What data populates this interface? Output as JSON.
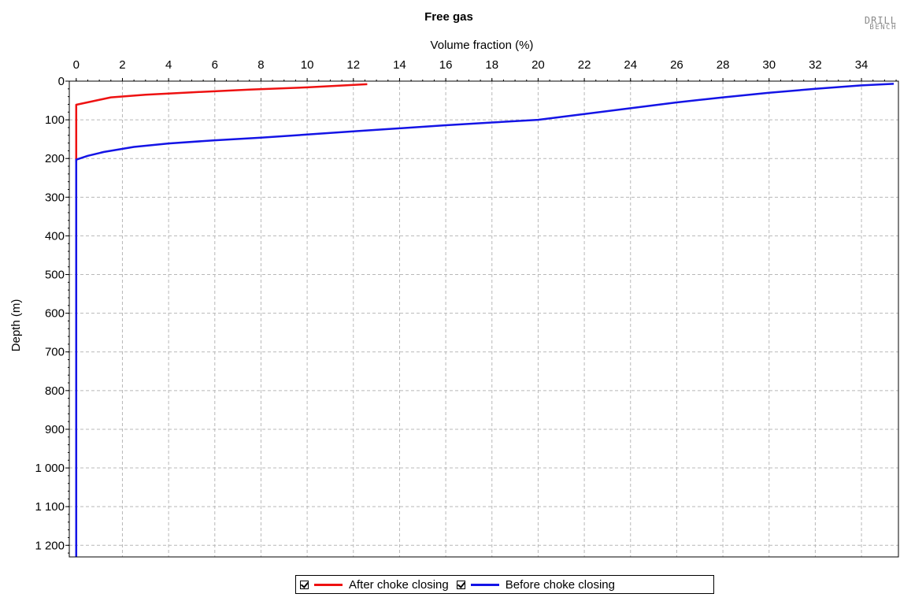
{
  "colors": {
    "after": "#ee1111",
    "before": "#1414e6",
    "grid": "#b8b8b8"
  },
  "logo": {
    "line1": "DRILL",
    "line2": "BENCH"
  },
  "chart_data": {
    "type": "line",
    "title": "Free gas",
    "xlabel": "Volume fraction (%)",
    "ylabel": "Depth (m)",
    "x_axis_position": "top",
    "y_inverted": true,
    "xlim": [
      -0.3,
      35.6
    ],
    "ylim": [
      0,
      1230
    ],
    "xticks": [
      0,
      2,
      4,
      6,
      8,
      10,
      12,
      14,
      16,
      18,
      20,
      22,
      24,
      26,
      28,
      30,
      32,
      34
    ],
    "yticks": [
      {
        "value": 0,
        "label": "0"
      },
      {
        "value": 100,
        "label": "100"
      },
      {
        "value": 200,
        "label": "200"
      },
      {
        "value": 300,
        "label": "300"
      },
      {
        "value": 400,
        "label": "400"
      },
      {
        "value": 500,
        "label": "500"
      },
      {
        "value": 600,
        "label": "600"
      },
      {
        "value": 700,
        "label": "700"
      },
      {
        "value": 800,
        "label": "800"
      },
      {
        "value": 900,
        "label": "900"
      },
      {
        "value": 1000,
        "label": "1 000"
      },
      {
        "value": 1100,
        "label": "1 100"
      },
      {
        "value": 1200,
        "label": "1 200"
      }
    ],
    "grid": true,
    "legend_position": "bottom",
    "series": [
      {
        "name": "After choke closing",
        "color_key": "after",
        "points": [
          [
            12.6,
            8
          ],
          [
            10,
            16
          ],
          [
            7.5,
            22
          ],
          [
            5,
            29
          ],
          [
            3,
            35
          ],
          [
            1.5,
            42
          ],
          [
            0.4,
            56
          ],
          [
            0,
            61
          ],
          [
            0,
            100
          ],
          [
            0,
            200
          ],
          [
            0,
            210
          ]
        ]
      },
      {
        "name": "Before choke closing",
        "color_key": "before",
        "points": [
          [
            35.4,
            7
          ],
          [
            34,
            11
          ],
          [
            32,
            20
          ],
          [
            30,
            30
          ],
          [
            28,
            42
          ],
          [
            26,
            55
          ],
          [
            24,
            70
          ],
          [
            22,
            85
          ],
          [
            20,
            100
          ],
          [
            18,
            107
          ],
          [
            16,
            114
          ],
          [
            14,
            122
          ],
          [
            12,
            130
          ],
          [
            10,
            138
          ],
          [
            8,
            146
          ],
          [
            6,
            153
          ],
          [
            4,
            161
          ],
          [
            2.5,
            170
          ],
          [
            1.2,
            183
          ],
          [
            0.5,
            193
          ],
          [
            0,
            203
          ],
          [
            0,
            1230
          ]
        ]
      }
    ]
  }
}
